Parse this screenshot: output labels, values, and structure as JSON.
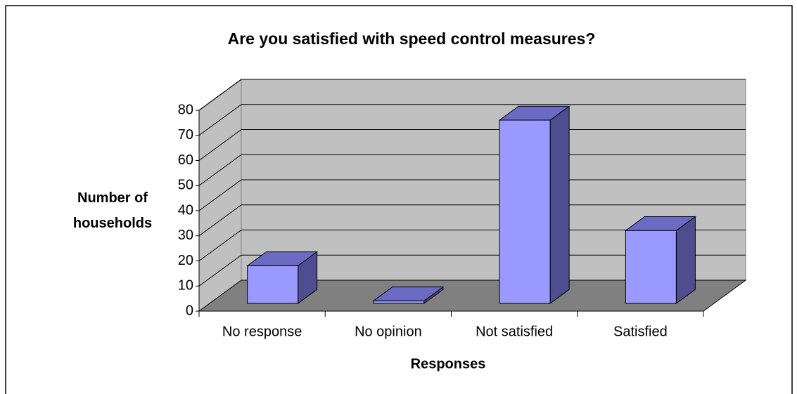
{
  "chart_data": {
    "type": "bar3d",
    "title": "Are you satisfied with speed control measures?",
    "x_label": "Responses",
    "y_label": "Number of households",
    "categories": [
      "No response",
      "No opinion",
      "Not satisfied",
      "Satisfied"
    ],
    "values": [
      15,
      1,
      73,
      29
    ],
    "color": "#9999ff",
    "ylim": [
      0,
      80
    ],
    "yticks": [
      0,
      10,
      20,
      30,
      40,
      50,
      60,
      70,
      80
    ],
    "grid": true
  }
}
